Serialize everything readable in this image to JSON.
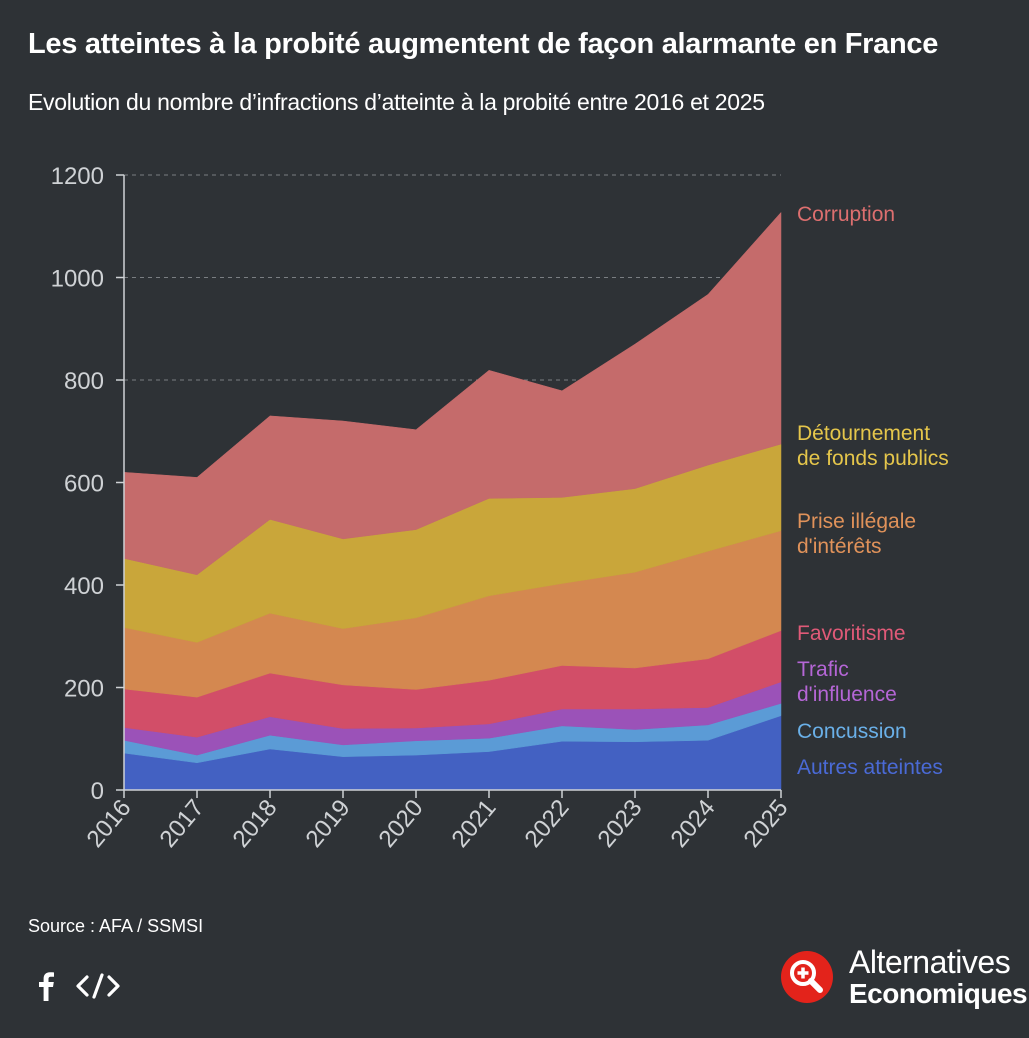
{
  "header": {
    "title": "Les atteintes à la probité augmentent de façon alarmante en France",
    "subtitle": "Evolution du nombre d’infractions d’atteinte à la probité entre 2016 et 2025"
  },
  "chart_data": {
    "type": "area",
    "stacked": true,
    "x": [
      "2016",
      "2017",
      "2018",
      "2019",
      "2020",
      "2021",
      "2022",
      "2023",
      "2024",
      "2025"
    ],
    "y_ticks": [
      "0",
      "200",
      "400",
      "600",
      "800",
      "1000",
      "1200"
    ],
    "ylim": [
      0,
      1200
    ],
    "grid": "horizontal dashed",
    "legend": "right, inline labels",
    "series": [
      {
        "name": "Autres atteintes",
        "label_lines": [
          "Autres atteintes"
        ],
        "color": "#4361c2",
        "values": [
          72,
          53,
          80,
          65,
          68,
          75,
          95,
          94,
          97,
          145
        ]
      },
      {
        "name": "Concussion",
        "label_lines": [
          "Concussion"
        ],
        "color": "#5b9bd6",
        "values": [
          25,
          15,
          27,
          23,
          28,
          26,
          30,
          24,
          30,
          24
        ]
      },
      {
        "name": "Trafic d'influence",
        "label_lines": [
          "Trafic",
          "d'influence"
        ],
        "color": "#9b52b8",
        "values": [
          25,
          35,
          36,
          32,
          25,
          28,
          33,
          40,
          34,
          42
        ]
      },
      {
        "name": "Favoritisme",
        "label_lines": [
          "Favoritisme"
        ],
        "color": "#d24e68",
        "values": [
          75,
          78,
          85,
          85,
          75,
          85,
          85,
          80,
          95,
          100
        ]
      },
      {
        "name": "Prise illégale d'intérêts",
        "label_lines": [
          "Prise illégale",
          "d'intérêts"
        ],
        "color": "#d48850",
        "values": [
          120,
          107,
          117,
          110,
          140,
          165,
          160,
          187,
          210,
          195
        ]
      },
      {
        "name": "Détournement de fonds publics",
        "label_lines": [
          "Détournement",
          "de fonds publics"
        ],
        "color": "#c9a63a",
        "values": [
          135,
          132,
          183,
          175,
          172,
          190,
          168,
          163,
          168,
          169
        ]
      },
      {
        "name": "Corruption",
        "label_lines": [
          "Corruption"
        ],
        "color": "#c56b6b",
        "values": [
          168,
          190,
          202,
          230,
          195,
          250,
          208,
          282,
          333,
          452
        ]
      }
    ],
    "label_colors": {
      "Autres atteintes": "#4a6ad6",
      "Concussion": "#6ab0e8",
      "Trafic d'influence": "#b566d6",
      "Favoritisme": "#e05a78",
      "Prise illégale d'intérêts": "#e0925a",
      "Détournement de fonds publics": "#e5c64b",
      "Corruption": "#dd6f6f"
    }
  },
  "footer": {
    "source": "Source : AFA / SSMSI",
    "share_facebook_icon": "facebook-icon",
    "share_embed_icon": "embed-code-icon",
    "brand_line1": "Alternatives",
    "brand_line2": "Economiques",
    "brand_logo_icon": "magnifier-plus-logo"
  }
}
